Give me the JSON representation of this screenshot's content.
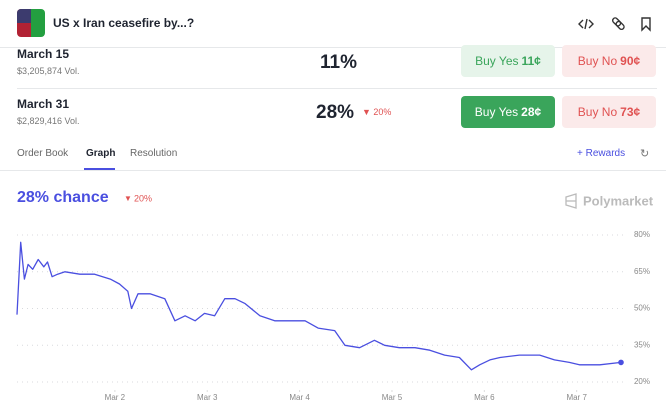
{
  "header": {
    "title": "US x Iran ceasefire by...?"
  },
  "markets": [
    {
      "date": "March 15",
      "volume": "$3,205,874 Vol.",
      "chance": "11%",
      "yes_label": "Buy Yes",
      "yes_price": "11¢",
      "no_label": "Buy No",
      "no_price": "90¢"
    },
    {
      "date": "March 31",
      "volume": "$2,829,416 Vol.",
      "chance": "28%",
      "change": "20%",
      "yes_label": "Buy Yes",
      "yes_price": "28¢",
      "no_label": "Buy No",
      "no_price": "73¢"
    }
  ],
  "tabs": [
    "Order Book",
    "Graph",
    "Resolution"
  ],
  "rewards": "Rewards",
  "chart_data": {
    "type": "line",
    "title": "28% chance",
    "change": "20%",
    "brand": "Polymarket",
    "x": [
      0.94,
      0.98,
      1.02,
      1.06,
      1.11,
      1.17,
      1.23,
      1.27,
      1.32,
      1.38,
      1.46,
      1.62,
      1.78,
      1.95,
      2.05,
      2.14,
      2.18,
      2.25,
      2.38,
      2.54,
      2.65,
      2.76,
      2.87,
      2.97,
      3.08,
      3.19,
      3.3,
      3.41,
      3.57,
      3.73,
      3.89,
      4.06,
      4.2,
      4.38,
      4.49,
      4.65,
      4.81,
      4.92,
      5.08,
      5.25,
      5.41,
      5.57,
      5.73,
      5.86,
      5.95,
      6.06,
      6.17,
      6.38,
      6.6,
      6.76,
      6.92,
      7.03,
      7.25,
      7.48
    ],
    "series": [
      {
        "name": "March 31",
        "color": "#4a4fe0",
        "values": [
          47.5,
          77,
          62,
          68,
          66,
          70,
          67,
          69,
          63,
          64,
          65,
          64,
          64,
          62,
          60,
          57,
          50,
          56,
          56,
          54,
          45,
          47,
          45,
          48,
          47,
          54,
          54,
          52,
          47,
          45,
          45,
          45,
          42,
          41,
          35,
          34,
          37,
          35,
          34,
          34,
          33,
          31,
          30,
          25,
          27,
          29,
          30,
          31,
          31,
          29,
          28,
          27,
          27,
          28
        ]
      }
    ],
    "xlim": [
      0.94,
      7.48
    ],
    "xticks": [
      {
        "value": 2,
        "label": "Mar 2"
      },
      {
        "value": 3,
        "label": "Mar 3"
      },
      {
        "value": 4,
        "label": "Mar 4"
      },
      {
        "value": 5,
        "label": "Mar 5"
      },
      {
        "value": 6,
        "label": "Mar 6"
      },
      {
        "value": 7,
        "label": "Mar 7"
      }
    ],
    "ylim": [
      20,
      80
    ],
    "yticks": [
      {
        "value": 20,
        "label": "20%"
      },
      {
        "value": 35,
        "label": "35%"
      },
      {
        "value": 50,
        "label": "50%"
      },
      {
        "value": 65,
        "label": "65%"
      },
      {
        "value": 80,
        "label": "80%"
      }
    ],
    "grid": true
  }
}
